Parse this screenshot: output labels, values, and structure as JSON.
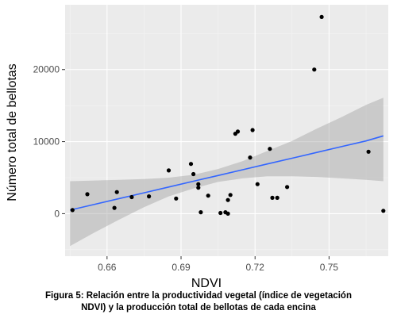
{
  "chart_data": {
    "type": "scatter",
    "xlabel": "NDVI",
    "ylabel": "Número total de bellotas",
    "xlim": [
      0.643,
      0.774
    ],
    "ylim": [
      -5900,
      29000
    ],
    "x_ticks": [
      0.66,
      0.69,
      0.72,
      0.75
    ],
    "x_tick_labels": [
      "0.66",
      "0.69",
      "0.72",
      "0.75"
    ],
    "y_ticks": [
      0,
      10000,
      20000
    ],
    "y_tick_labels": [
      "0",
      "10000",
      "20000"
    ],
    "grid": true,
    "points": [
      {
        "x": 0.646,
        "y": 500
      },
      {
        "x": 0.652,
        "y": 2700
      },
      {
        "x": 0.663,
        "y": 800
      },
      {
        "x": 0.664,
        "y": 3000
      },
      {
        "x": 0.67,
        "y": 2300
      },
      {
        "x": 0.677,
        "y": 2400
      },
      {
        "x": 0.685,
        "y": 6000
      },
      {
        "x": 0.688,
        "y": 2100
      },
      {
        "x": 0.694,
        "y": 6900
      },
      {
        "x": 0.695,
        "y": 5500
      },
      {
        "x": 0.697,
        "y": 4100
      },
      {
        "x": 0.697,
        "y": 3600
      },
      {
        "x": 0.698,
        "y": 200
      },
      {
        "x": 0.701,
        "y": 2500
      },
      {
        "x": 0.706,
        "y": 100
      },
      {
        "x": 0.708,
        "y": 200
      },
      {
        "x": 0.709,
        "y": 0
      },
      {
        "x": 0.709,
        "y": 1900
      },
      {
        "x": 0.71,
        "y": 2600
      },
      {
        "x": 0.712,
        "y": 11100
      },
      {
        "x": 0.713,
        "y": 11400
      },
      {
        "x": 0.718,
        "y": 7800
      },
      {
        "x": 0.719,
        "y": 11600
      },
      {
        "x": 0.721,
        "y": 4100
      },
      {
        "x": 0.726,
        "y": 9000
      },
      {
        "x": 0.727,
        "y": 2200
      },
      {
        "x": 0.729,
        "y": 2200
      },
      {
        "x": 0.733,
        "y": 3700
      },
      {
        "x": 0.744,
        "y": 20000
      },
      {
        "x": 0.747,
        "y": 27300
      },
      {
        "x": 0.766,
        "y": 8600
      },
      {
        "x": 0.772,
        "y": 400
      }
    ],
    "regression": {
      "x": [
        0.645,
        0.655,
        0.665,
        0.675,
        0.685,
        0.695,
        0.705,
        0.715,
        0.725,
        0.735,
        0.745,
        0.755,
        0.765,
        0.772
      ],
      "fit": [
        500,
        1300,
        2100,
        2900,
        3700,
        4500,
        5300,
        6100,
        6900,
        7700,
        8500,
        9300,
        10100,
        10800
      ],
      "lower": [
        -4500,
        -2600,
        -800,
        900,
        2400,
        3500,
        4400,
        4900,
        5200,
        5200,
        5100,
        4900,
        4700,
        4500
      ],
      "upper": [
        4500,
        4600,
        4700,
        4800,
        5000,
        5400,
        6200,
        7300,
        8700,
        10100,
        11800,
        13400,
        15100,
        16100
      ]
    },
    "colors": {
      "panel": "#ebebeb",
      "grid_major": "#ffffff",
      "grid_minor": "#f4f4f4",
      "point": "#000000",
      "line": "#3366ff",
      "ribbon": "#999999"
    }
  },
  "caption": {
    "line1": "Figura 5: Relación entre la productividad vegetal (índice de vegetación",
    "line2": "NDVI) y la producción total de bellotas de cada encina"
  }
}
